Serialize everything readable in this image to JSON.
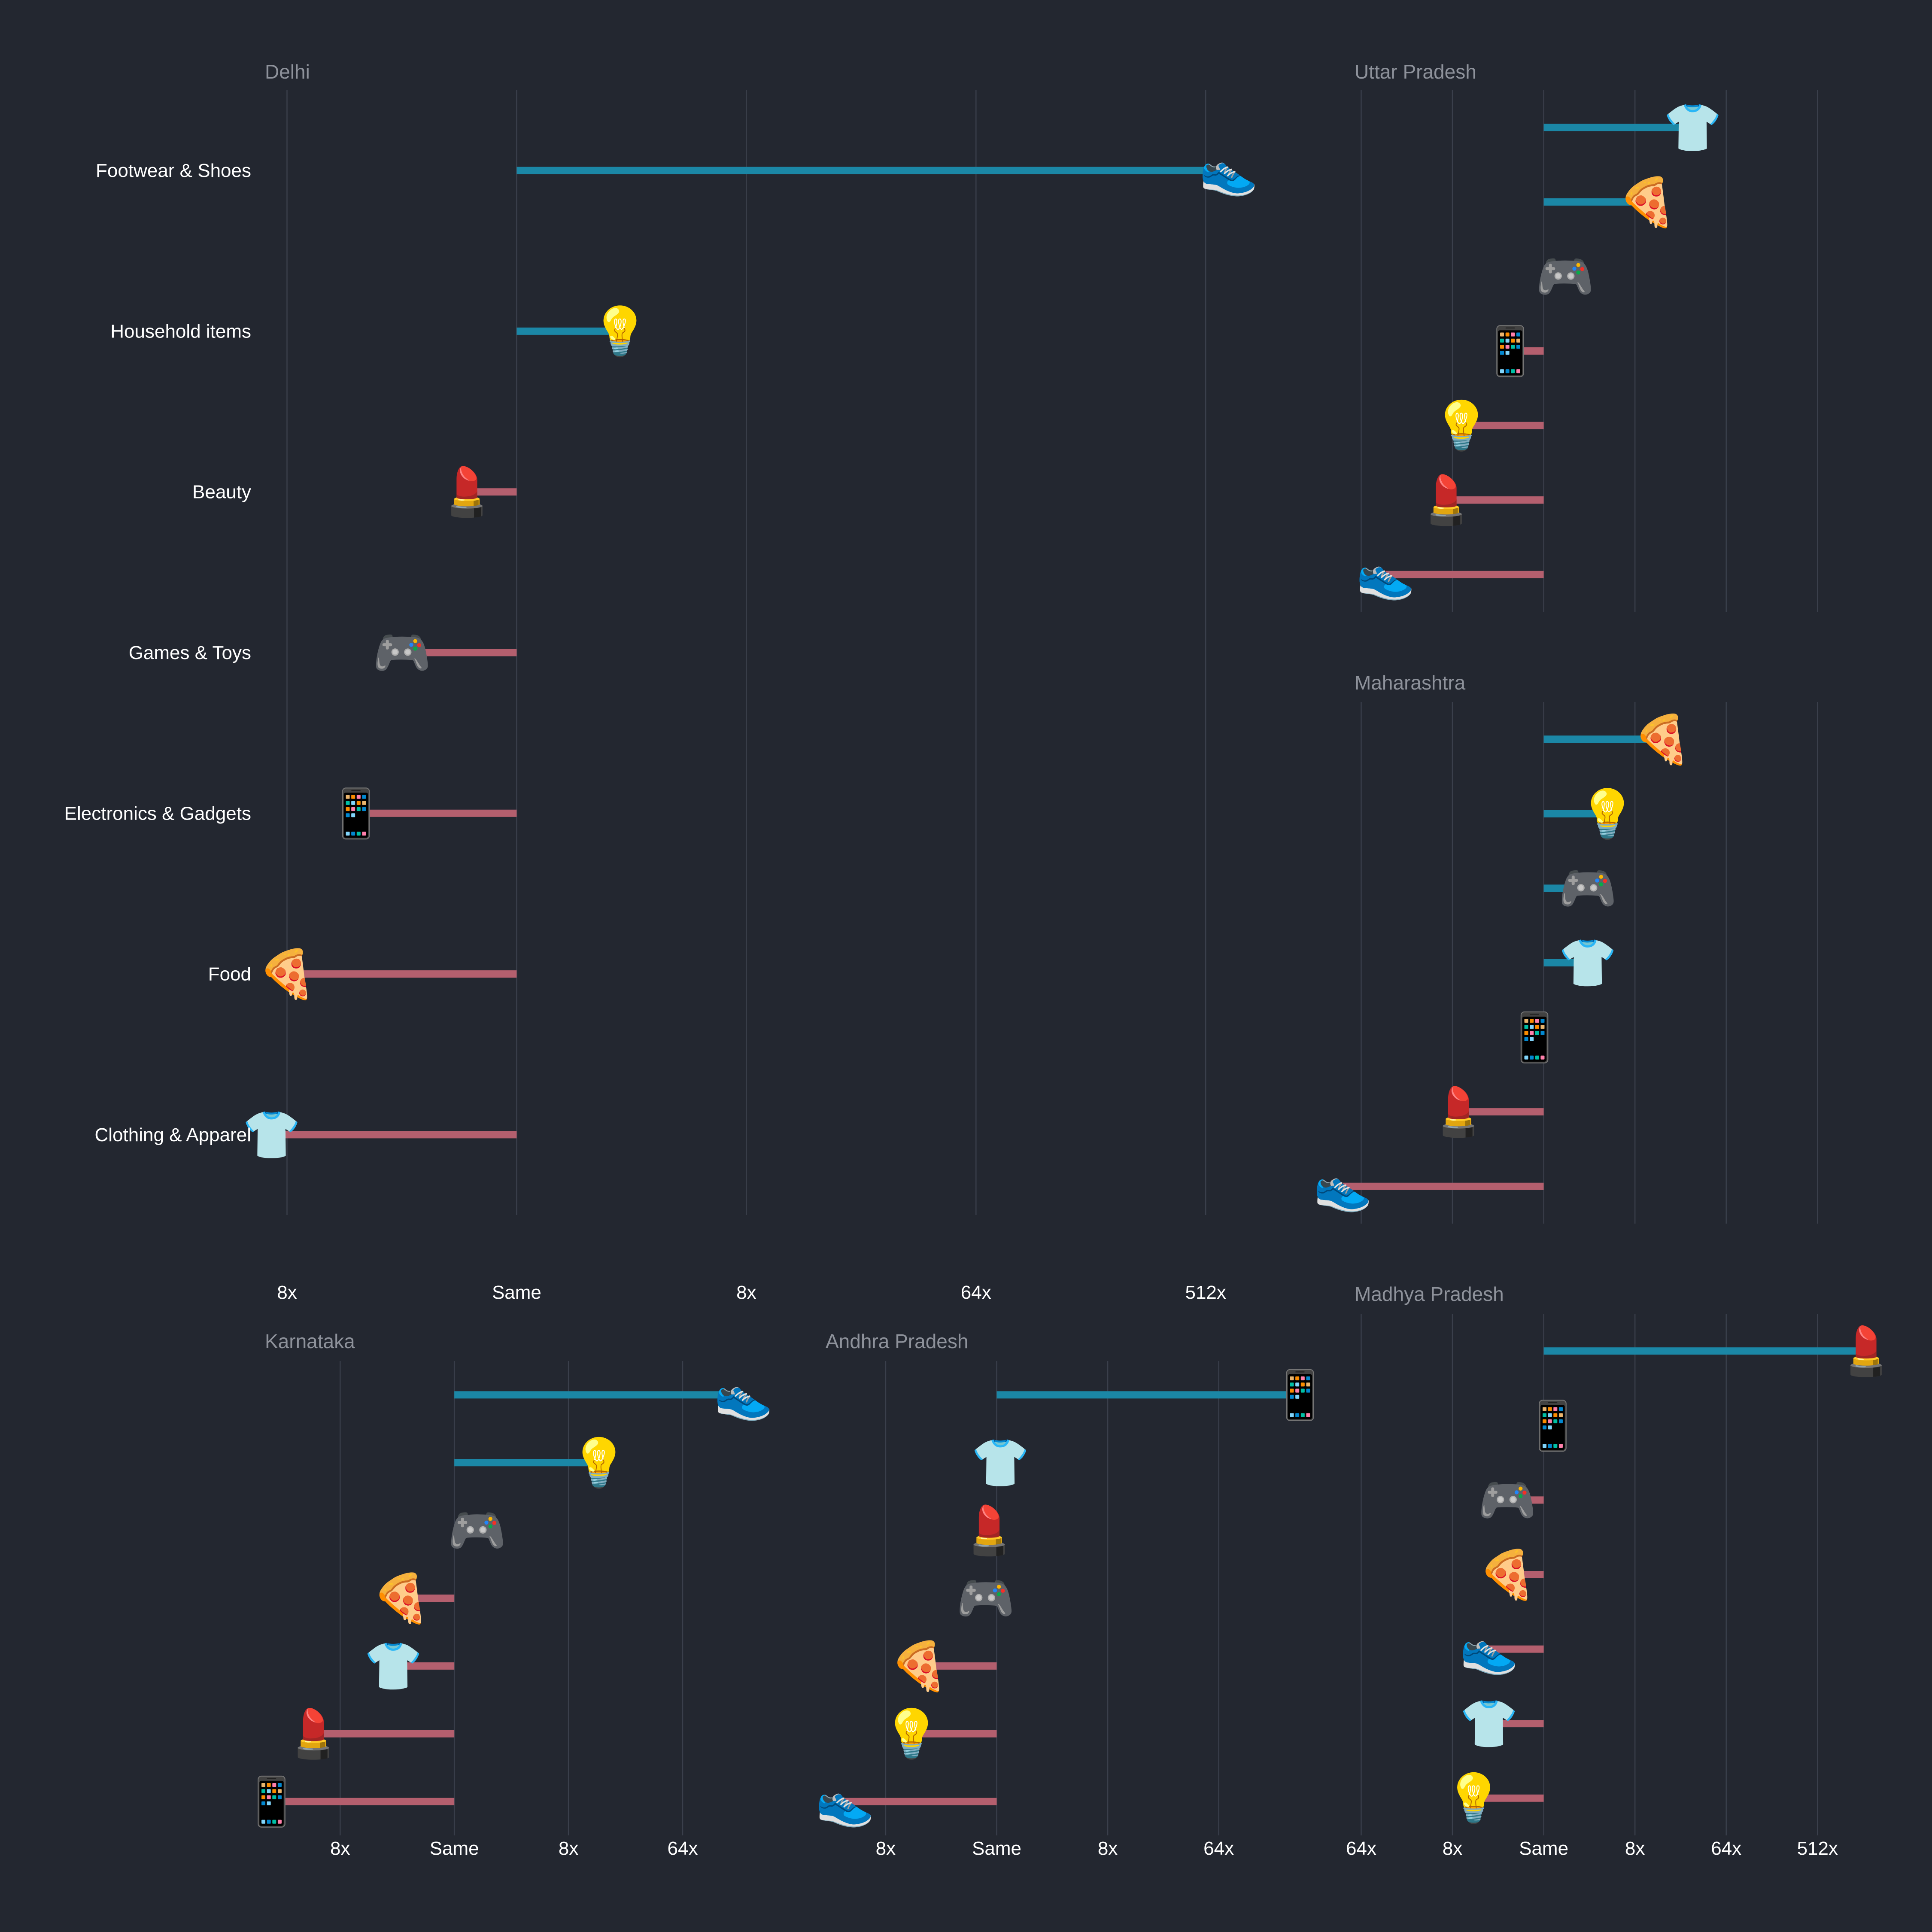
{
  "colors": {
    "background": "#232730",
    "increase": "#1b87a6",
    "decrease": "#b45f6e",
    "grid": "#3a3f4b",
    "panel_title": "#8e929b",
    "label": "#ffffff"
  },
  "icons": {
    "Footwear & Shoes": "👟",
    "Household items": "💡",
    "Beauty": "💄",
    "Games & Toys": "🎮",
    "Electronics & Gadgets": "📱",
    "Food": "🍕",
    "Clothing & Apparel": "👕"
  },
  "chart_data": [
    {
      "type": "bar",
      "orientation": "horizontal",
      "title": "Delhi",
      "scale": "log2 ratio vs baseline",
      "baseline": "Same",
      "xlim": [
        -3.3,
        10.3
      ],
      "ticks": [
        {
          "value": -3,
          "label": "8x"
        },
        {
          "value": 0,
          "label": "Same"
        },
        {
          "value": 3,
          "label": "8x"
        },
        {
          "value": 6,
          "label": "64x"
        },
        {
          "value": 9,
          "label": "512x"
        }
      ],
      "categories": [
        "Footwear & Shoes",
        "Household items",
        "Beauty",
        "Games & Toys",
        "Electronics & Gadgets",
        "Food",
        "Clothing & Apparel"
      ],
      "values": [
        9.3,
        1.35,
        -0.65,
        -1.5,
        -2.1,
        -3.0,
        -3.2
      ]
    },
    {
      "type": "bar",
      "orientation": "horizontal",
      "title": "Uttar Pradesh",
      "scale": "log2 ratio vs baseline",
      "baseline": "Same",
      "xlim": [
        -6.5,
        11
      ],
      "ticks": [
        {
          "value": -6,
          "label": "64x"
        },
        {
          "value": -3,
          "label": "8x"
        },
        {
          "value": 0,
          "label": "Same"
        },
        {
          "value": 3,
          "label": "8x"
        },
        {
          "value": 6,
          "label": "64x"
        },
        {
          "value": 9,
          "label": "512x"
        }
      ],
      "categories": [
        "Clothing & Apparel",
        "Food",
        "Games & Toys",
        "Electronics & Gadgets",
        "Household items",
        "Beauty",
        "Footwear & Shoes"
      ],
      "values": [
        4.9,
        3.4,
        0.7,
        -1.1,
        -2.7,
        -3.2,
        -5.2
      ]
    },
    {
      "type": "bar",
      "orientation": "horizontal",
      "title": "Maharashtra",
      "scale": "log2 ratio vs baseline",
      "baseline": "Same",
      "xlim": [
        -6.5,
        11
      ],
      "ticks": [
        {
          "value": -6,
          "label": "64x"
        },
        {
          "value": -3,
          "label": "8x"
        },
        {
          "value": 0,
          "label": "Same"
        },
        {
          "value": 3,
          "label": "8x"
        },
        {
          "value": 6,
          "label": "64x"
        },
        {
          "value": 9,
          "label": "512x"
        }
      ],
      "categories": [
        "Food",
        "Household items",
        "Games & Toys",
        "Clothing & Apparel",
        "Electronics & Gadgets",
        "Beauty",
        "Footwear & Shoes"
      ],
      "values": [
        3.9,
        2.1,
        1.45,
        1.45,
        -0.3,
        -2.8,
        -6.6
      ]
    },
    {
      "type": "bar",
      "orientation": "horizontal",
      "title": "Madhya Pradesh",
      "scale": "log2 ratio vs baseline",
      "baseline": "Same",
      "xlim": [
        -6.5,
        11
      ],
      "ticks": [
        {
          "value": -6,
          "label": "64x"
        },
        {
          "value": -3,
          "label": "8x"
        },
        {
          "value": 0,
          "label": "Same"
        },
        {
          "value": 3,
          "label": "8x"
        },
        {
          "value": 6,
          "label": "64x"
        },
        {
          "value": 9,
          "label": "512x"
        }
      ],
      "categories": [
        "Beauty",
        "Electronics & Gadgets",
        "Games & Toys",
        "Food",
        "Footwear & Shoes",
        "Clothing & Apparel",
        "Household items"
      ],
      "values": [
        10.6,
        0.3,
        -1.2,
        -1.2,
        -1.8,
        -1.8,
        -2.3
      ]
    },
    {
      "type": "bar",
      "orientation": "horizontal",
      "title": "Karnataka",
      "scale": "log2 ratio vs baseline",
      "baseline": "Same",
      "xlim": [
        -5,
        8.2
      ],
      "ticks": [
        {
          "value": -3,
          "label": "8x"
        },
        {
          "value": 0,
          "label": "Same"
        },
        {
          "value": 3,
          "label": "8x"
        },
        {
          "value": 6,
          "label": "64x"
        }
      ],
      "categories": [
        "Footwear & Shoes",
        "Household items",
        "Games & Toys",
        "Food",
        "Clothing & Apparel",
        "Beauty",
        "Electronics & Gadgets"
      ],
      "values": [
        7.6,
        3.8,
        0.6,
        -1.4,
        -1.6,
        -3.7,
        -4.8
      ]
    },
    {
      "type": "bar",
      "orientation": "horizontal",
      "title": "Andhra Pradesh",
      "scale": "log2 ratio vs baseline",
      "baseline": "Same",
      "xlim": [
        -4.6,
        8.8
      ],
      "ticks": [
        {
          "value": -3,
          "label": "8x"
        },
        {
          "value": 0,
          "label": "Same"
        },
        {
          "value": 3,
          "label": "8x"
        },
        {
          "value": 6,
          "label": "64x"
        }
      ],
      "categories": [
        "Electronics & Gadgets",
        "Clothing & Apparel",
        "Beauty",
        "Games & Toys",
        "Food",
        "Household items",
        "Footwear & Shoes"
      ],
      "values": [
        8.2,
        0.1,
        -0.2,
        -0.3,
        -2.1,
        -2.3,
        -4.1
      ]
    }
  ]
}
